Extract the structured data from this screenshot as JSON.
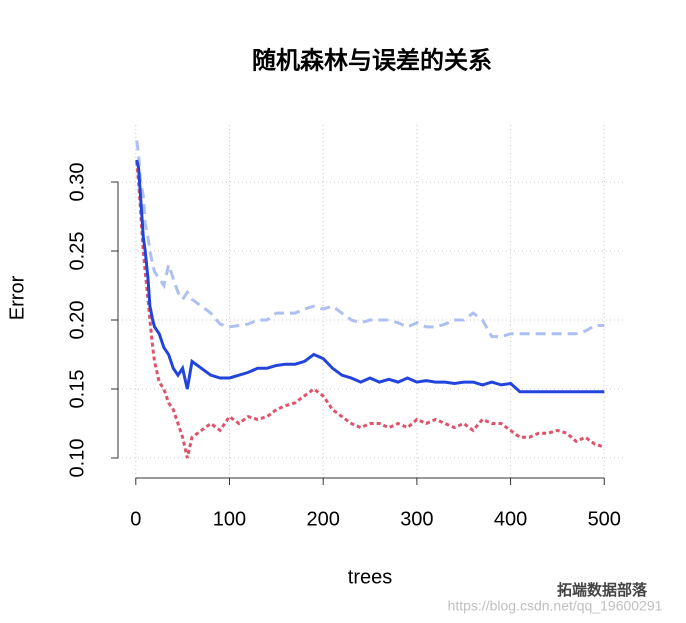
{
  "chart_data": {
    "type": "line",
    "title": "随机森林与误差的关系",
    "x_label": "trees",
    "y_label": "Error",
    "x": [
      1,
      3,
      5,
      8,
      10,
      13,
      15,
      18,
      20,
      25,
      30,
      35,
      40,
      45,
      50,
      55,
      60,
      70,
      80,
      90,
      100,
      110,
      120,
      130,
      140,
      150,
      160,
      170,
      180,
      190,
      200,
      210,
      220,
      230,
      240,
      250,
      260,
      270,
      280,
      290,
      300,
      310,
      320,
      330,
      340,
      350,
      360,
      370,
      380,
      390,
      400,
      410,
      420,
      430,
      440,
      450,
      460,
      470,
      480,
      490,
      500
    ],
    "series": [
      {
        "color": "#aebff2",
        "linestyle": "dashed",
        "values": [
          0.33,
          0.32,
          0.3,
          0.29,
          0.27,
          0.26,
          0.25,
          0.24,
          0.235,
          0.23,
          0.225,
          0.24,
          0.23,
          0.22,
          0.215,
          0.22,
          0.215,
          0.21,
          0.205,
          0.197,
          0.195,
          0.196,
          0.197,
          0.2,
          0.2,
          0.205,
          0.205,
          0.205,
          0.208,
          0.21,
          0.208,
          0.21,
          0.205,
          0.2,
          0.198,
          0.2,
          0.2,
          0.2,
          0.198,
          0.195,
          0.198,
          0.195,
          0.195,
          0.197,
          0.2,
          0.2,
          0.205,
          0.2,
          0.188,
          0.188,
          0.19,
          0.19,
          0.19,
          0.19,
          0.19,
          0.19,
          0.19,
          0.19,
          0.192,
          0.196,
          0.196
        ]
      },
      {
        "color": "#df536b",
        "linestyle": "dotted",
        "values": [
          0.315,
          0.3,
          0.28,
          0.25,
          0.235,
          0.215,
          0.2,
          0.18,
          0.17,
          0.155,
          0.15,
          0.14,
          0.135,
          0.125,
          0.115,
          0.1,
          0.115,
          0.12,
          0.125,
          0.12,
          0.13,
          0.125,
          0.13,
          0.128,
          0.13,
          0.135,
          0.138,
          0.14,
          0.145,
          0.15,
          0.145,
          0.135,
          0.13,
          0.125,
          0.122,
          0.125,
          0.125,
          0.122,
          0.125,
          0.122,
          0.128,
          0.125,
          0.128,
          0.125,
          0.122,
          0.125,
          0.12,
          0.128,
          0.125,
          0.125,
          0.12,
          0.115,
          0.115,
          0.118,
          0.118,
          0.12,
          0.118,
          0.112,
          0.115,
          0.11,
          0.108
        ]
      },
      {
        "color": "#2244dd",
        "linestyle": "solid",
        "values": [
          0.316,
          0.31,
          0.29,
          0.26,
          0.25,
          0.23,
          0.21,
          0.2,
          0.195,
          0.19,
          0.18,
          0.175,
          0.165,
          0.16,
          0.165,
          0.15,
          0.17,
          0.165,
          0.16,
          0.158,
          0.158,
          0.16,
          0.162,
          0.165,
          0.165,
          0.167,
          0.168,
          0.168,
          0.17,
          0.175,
          0.172,
          0.165,
          0.16,
          0.158,
          0.155,
          0.158,
          0.155,
          0.157,
          0.155,
          0.158,
          0.155,
          0.156,
          0.155,
          0.155,
          0.154,
          0.155,
          0.155,
          0.153,
          0.155,
          0.153,
          0.154,
          0.148,
          0.148,
          0.148,
          0.148,
          0.148,
          0.148,
          0.148,
          0.148,
          0.148,
          0.148
        ]
      }
    ],
    "xlim": [
      -19,
      520
    ],
    "xticks": [
      0,
      100,
      200,
      300,
      400,
      500
    ],
    "ylim": [
      0.0855,
      0.3413
    ],
    "yticks": [
      {
        "value": 0.1,
        "label": "0.10"
      },
      0.15,
      {
        "value": 0.2,
        "label": "0.20"
      },
      0.25,
      {
        "value": 0.3,
        "label": "0.30"
      }
    ],
    "grid": true
  },
  "watermark": {
    "brand": "拓端数据部落",
    "url": "https://blog.csdn.net/qq_19600291"
  }
}
